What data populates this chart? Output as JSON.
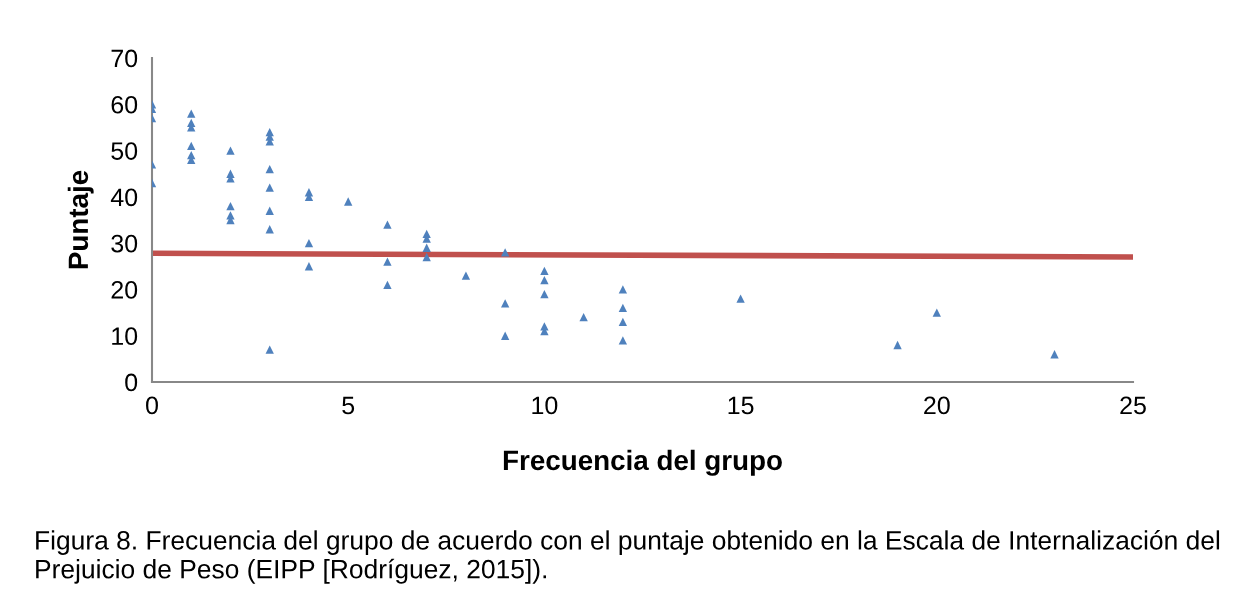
{
  "chart_data": {
    "type": "scatter",
    "xlabel": "Frecuencia del grupo",
    "ylabel": "Puntaje",
    "annotations": [
      "Figura 8. Frecuencia del grupo de acuerdo con el puntaje obtenido en la Escala de Internalización del Prejuicio de Peso (EIPP [Rodríguez, 2015])."
    ],
    "xlim": [
      0,
      25
    ],
    "xticks": [
      0,
      5,
      10,
      15,
      20,
      25
    ],
    "ylim": [
      0,
      70
    ],
    "yticks": [
      0,
      10,
      20,
      30,
      40,
      50,
      60,
      70
    ],
    "grid": false,
    "legend": false,
    "marker": "triangle",
    "series": [
      {
        "color": "#4f81bd",
        "x": [
          0,
          0,
          0,
          0,
          0,
          1,
          1,
          1,
          1,
          1,
          1,
          2,
          2,
          2,
          2,
          2,
          2,
          3,
          3,
          3,
          3,
          3,
          3,
          3,
          3,
          4,
          4,
          4,
          4,
          5,
          6,
          6,
          6,
          7,
          7,
          7,
          7,
          8,
          9,
          9,
          9,
          10,
          10,
          10,
          10,
          10,
          11,
          12,
          12,
          12,
          12,
          15,
          19,
          20,
          23
        ],
        "values": [
          60,
          59,
          57,
          47,
          43,
          58,
          56,
          55,
          51,
          49,
          48,
          50,
          45,
          44,
          38,
          36,
          35,
          54,
          53,
          52,
          46,
          42,
          37,
          33,
          7,
          41,
          40,
          30,
          25,
          39,
          34,
          26,
          21,
          32,
          31,
          29,
          27,
          23,
          28,
          17,
          10,
          24,
          22,
          19,
          12,
          11,
          14,
          20,
          16,
          13,
          9,
          18,
          8,
          15,
          6
        ]
      },
      {
        "type": "line",
        "color": "#c0504d",
        "x": [
          0,
          25
        ],
        "values": [
          27.8,
          27.0
        ],
        "marker": "none"
      }
    ]
  }
}
